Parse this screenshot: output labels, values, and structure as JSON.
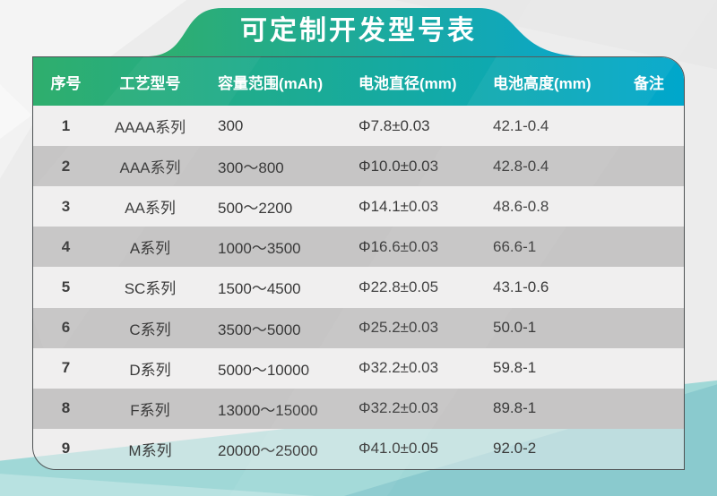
{
  "title": "可定制开发型号表",
  "table": {
    "headers": [
      "序号",
      "工艺型号",
      "容量范围(mAh)",
      "电池直径(mm)",
      "电池高度(mm)",
      "备注"
    ],
    "rows": [
      [
        "1",
        "AAAA系列",
        "300",
        "Φ7.8±0.03",
        "42.1-0.4",
        ""
      ],
      [
        "2",
        "AAA系列",
        "300～800",
        "Φ10.0±0.03",
        "42.8-0.4",
        ""
      ],
      [
        "3",
        "AA系列",
        "500～2200",
        "Φ14.1±0.03",
        "48.6-0.8",
        ""
      ],
      [
        "4",
        "A系列",
        "1000～3500",
        "Φ16.6±0.03",
        "66.6-1",
        ""
      ],
      [
        "5",
        "SC系列",
        "1500～4500",
        "Φ22.8±0.05",
        "43.1-0.6",
        ""
      ],
      [
        "6",
        "C系列",
        "3500～5000",
        "Φ25.2±0.03",
        "50.0-1",
        ""
      ],
      [
        "7",
        "D系列",
        "5000～10000",
        "Φ32.2±0.03",
        "59.8-1",
        ""
      ],
      [
        "8",
        "F系列",
        "13000～15000",
        "Φ32.2±0.03",
        "89.8-1",
        ""
      ],
      [
        "9",
        "M系列",
        "20000～25000",
        "Φ41.0±0.05",
        "92.0-2",
        ""
      ]
    ]
  },
  "colors": {
    "page_bg": "#ececec",
    "banner_green": "#2fae6d",
    "banner_cyan": "#0aa6c9",
    "header_green": "#2fae6d",
    "header_cyan": "#00a7cc",
    "header_text": "#ffffff",
    "row_light": "#f0efef",
    "row_dark": "#c6c5c5",
    "row_last": "rgba(241,240,240,0.5)",
    "teal": "#a0d8d7",
    "card_border": "#4e5254",
    "text": "#3a3a3a"
  }
}
